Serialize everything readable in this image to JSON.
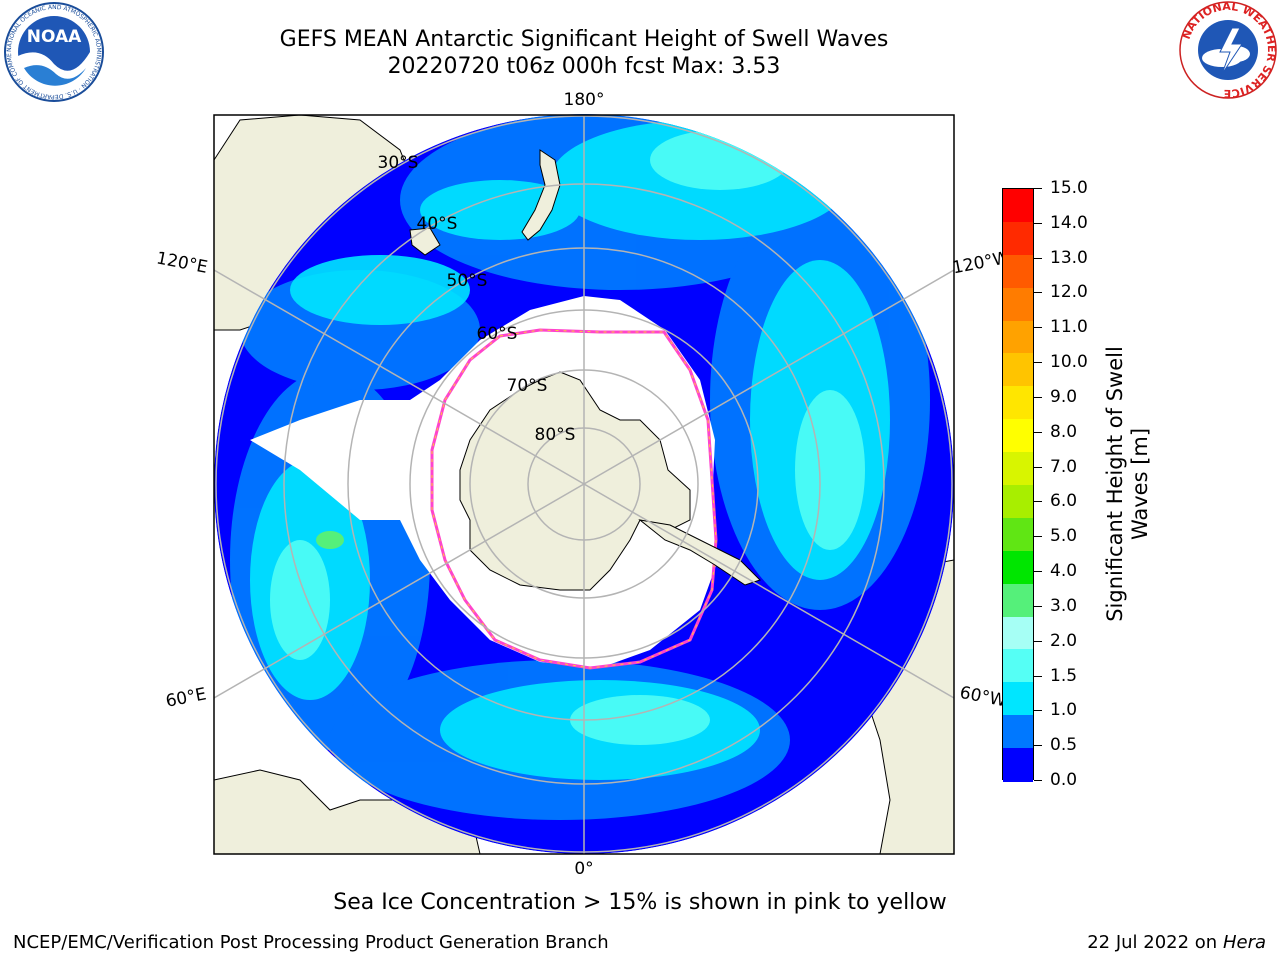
{
  "header": {
    "title_line_1": "GEFS MEAN Antarctic Significant Height of Swell Waves",
    "title_line_2": "20220720 t06z 000h fcst   Max: 3.53"
  },
  "logos": {
    "noaa": "NOAA",
    "noaa_ring": "NATIONAL OCEANIC AND ATMOSPHERIC ADMINISTRATION · U.S. DEPARTMENT OF COMMERCE",
    "nws_ring": "NATIONAL WEATHER SERVICE"
  },
  "map": {
    "longitude_labels": {
      "top": "180°",
      "bottom": "0°",
      "upper_left": "120°E",
      "upper_right": "120°W",
      "lower_left": "60°E",
      "lower_right": "60°W"
    },
    "latitude_labels": [
      "30°S",
      "40°S",
      "50°S",
      "60°S",
      "70°S",
      "80°S"
    ],
    "colors": {
      "land": "#efefdc",
      "grid": "#b4b4b4",
      "ice_edge": "#ff44cc",
      "no_data": "#ffffff"
    }
  },
  "colorbar": {
    "title_line_1": "Significant Height of Swell",
    "title_line_2": "Waves [m]",
    "ticks": [
      "15.0",
      "14.0",
      "13.0",
      "12.0",
      "11.0",
      "10.0",
      "9.0",
      "8.0",
      "7.0",
      "6.0",
      "5.0",
      "4.0",
      "3.0",
      "2.0",
      "1.5",
      "1.0",
      "0.5",
      "0.0"
    ],
    "colors_top_to_bottom": [
      "#ff0000",
      "#ff2a00",
      "#ff5a00",
      "#ff7c00",
      "#ffa200",
      "#ffc400",
      "#ffe600",
      "#ffff00",
      "#d8f500",
      "#a8ee00",
      "#60e614",
      "#00e600",
      "#55f07a",
      "#a6fff5",
      "#55fff5",
      "#00e6ff",
      "#0078ff",
      "#0000ff"
    ]
  },
  "caption": "Sea Ice Concentration > 15% is shown in pink to yellow",
  "footer": {
    "left": "NCEP/EMC/Verification Post Processing Product Generation Branch",
    "right_date": "22 Jul 2022 on",
    "right_machine": "Hera"
  }
}
